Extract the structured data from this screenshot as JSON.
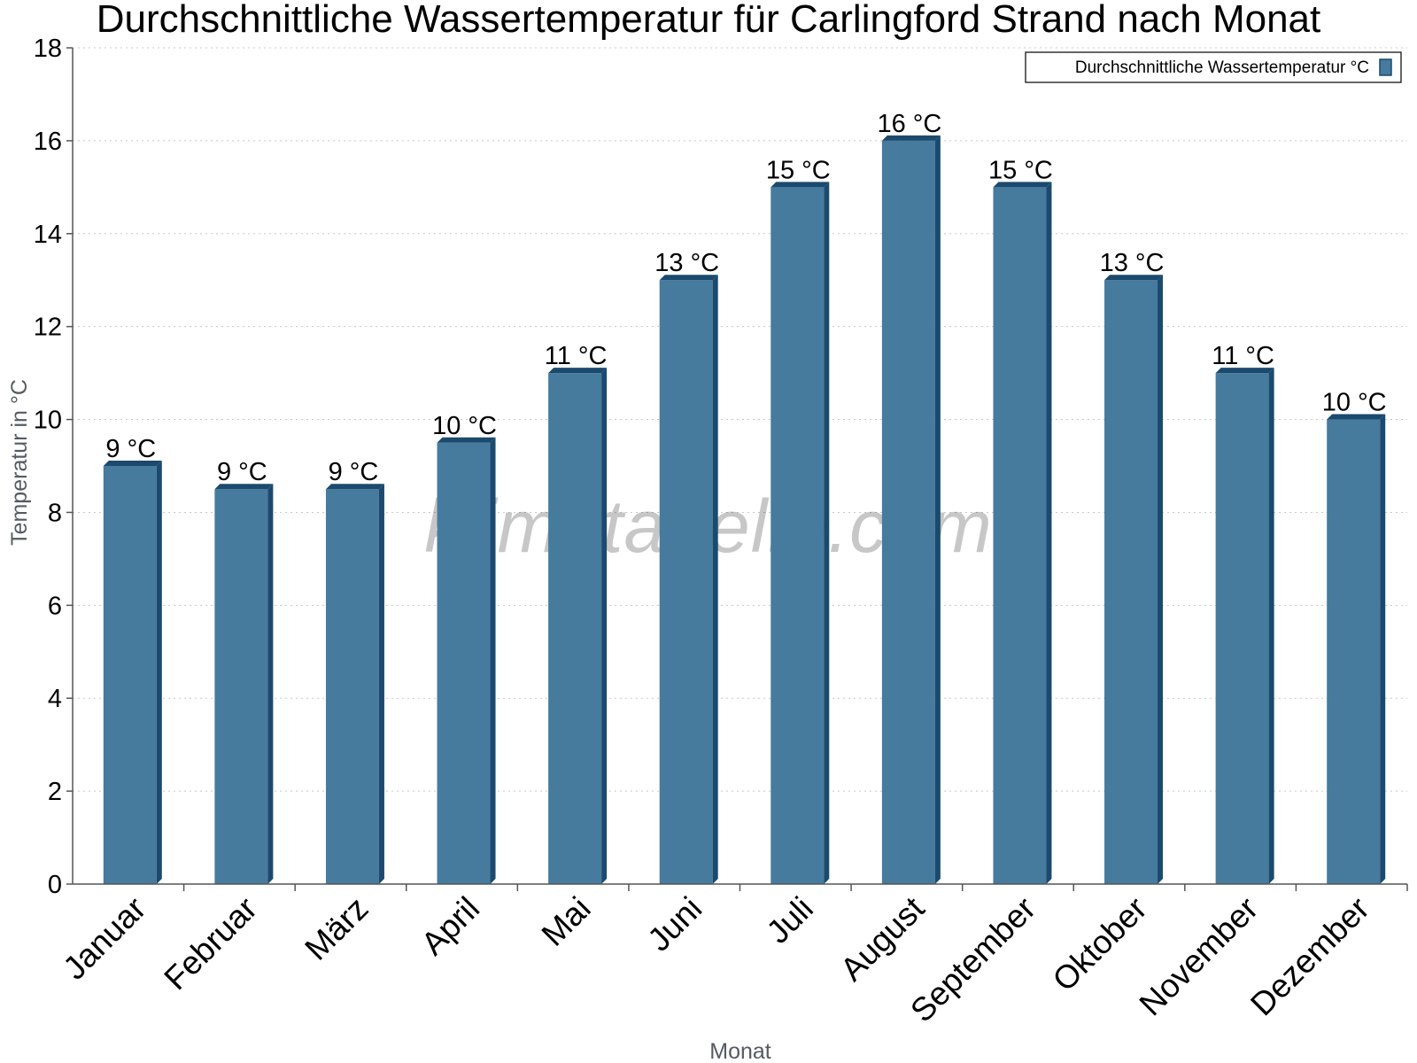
{
  "chart_data": {
    "type": "bar",
    "title": "Durchschnittliche Wassertemperatur für Carlingford Strand nach Monat",
    "xlabel": "Monat",
    "ylabel": "Temperatur in °C",
    "categories": [
      "Januar",
      "Februar",
      "März",
      "April",
      "Mai",
      "Juni",
      "Juli",
      "August",
      "September",
      "Oktober",
      "November",
      "Dezember"
    ],
    "series": [
      {
        "name": "Durchschnittliche Wassertemperatur °C",
        "values": [
          9.0,
          8.5,
          8.5,
          9.5,
          11.0,
          13.0,
          15.0,
          16.0,
          15.0,
          13.0,
          11.0,
          10.0
        ],
        "labels": [
          "9 °C",
          "9 °C",
          "9 °C",
          "10 °C",
          "11 °C",
          "13 °C",
          "15 °C",
          "16 °C",
          "15 °C",
          "13 °C",
          "11 °C",
          "10 °C"
        ]
      }
    ],
    "ylim": [
      0,
      18
    ],
    "yticks": [
      0,
      2,
      4,
      6,
      8,
      10,
      12,
      14,
      16,
      18
    ],
    "grid": true,
    "legend_position": "top-right",
    "colors": {
      "bar_front": "#467b9e",
      "bar_top": "#1b4a6e",
      "bar_side": "#1b4a6e"
    }
  },
  "watermark": "klimatabelle.com"
}
